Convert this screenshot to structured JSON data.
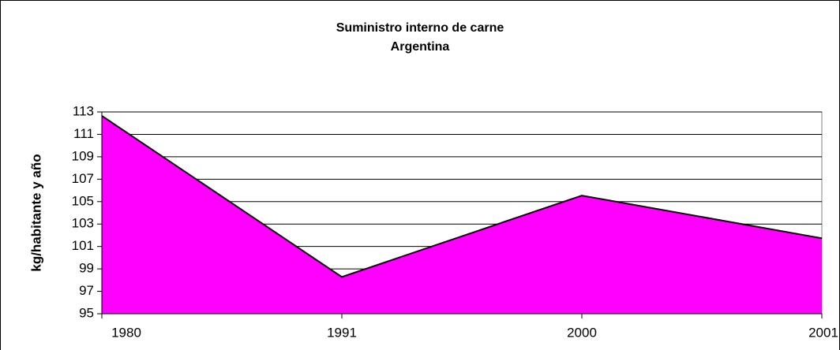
{
  "chart_data": {
    "type": "area",
    "title": "Suministro interno de carne",
    "subtitle": "Argentina",
    "y_label": "kg/habitante y año",
    "categories": [
      "1980",
      "1991",
      "2000",
      "2001"
    ],
    "values": [
      112.65,
      98.28,
      105.54,
      101.73
    ],
    "color": "#ff00ff",
    "ylim": [
      95,
      113
    ],
    "yticks": [
      95,
      97,
      99,
      101,
      103,
      105,
      107,
      109,
      111,
      113
    ],
    "grid": true
  }
}
